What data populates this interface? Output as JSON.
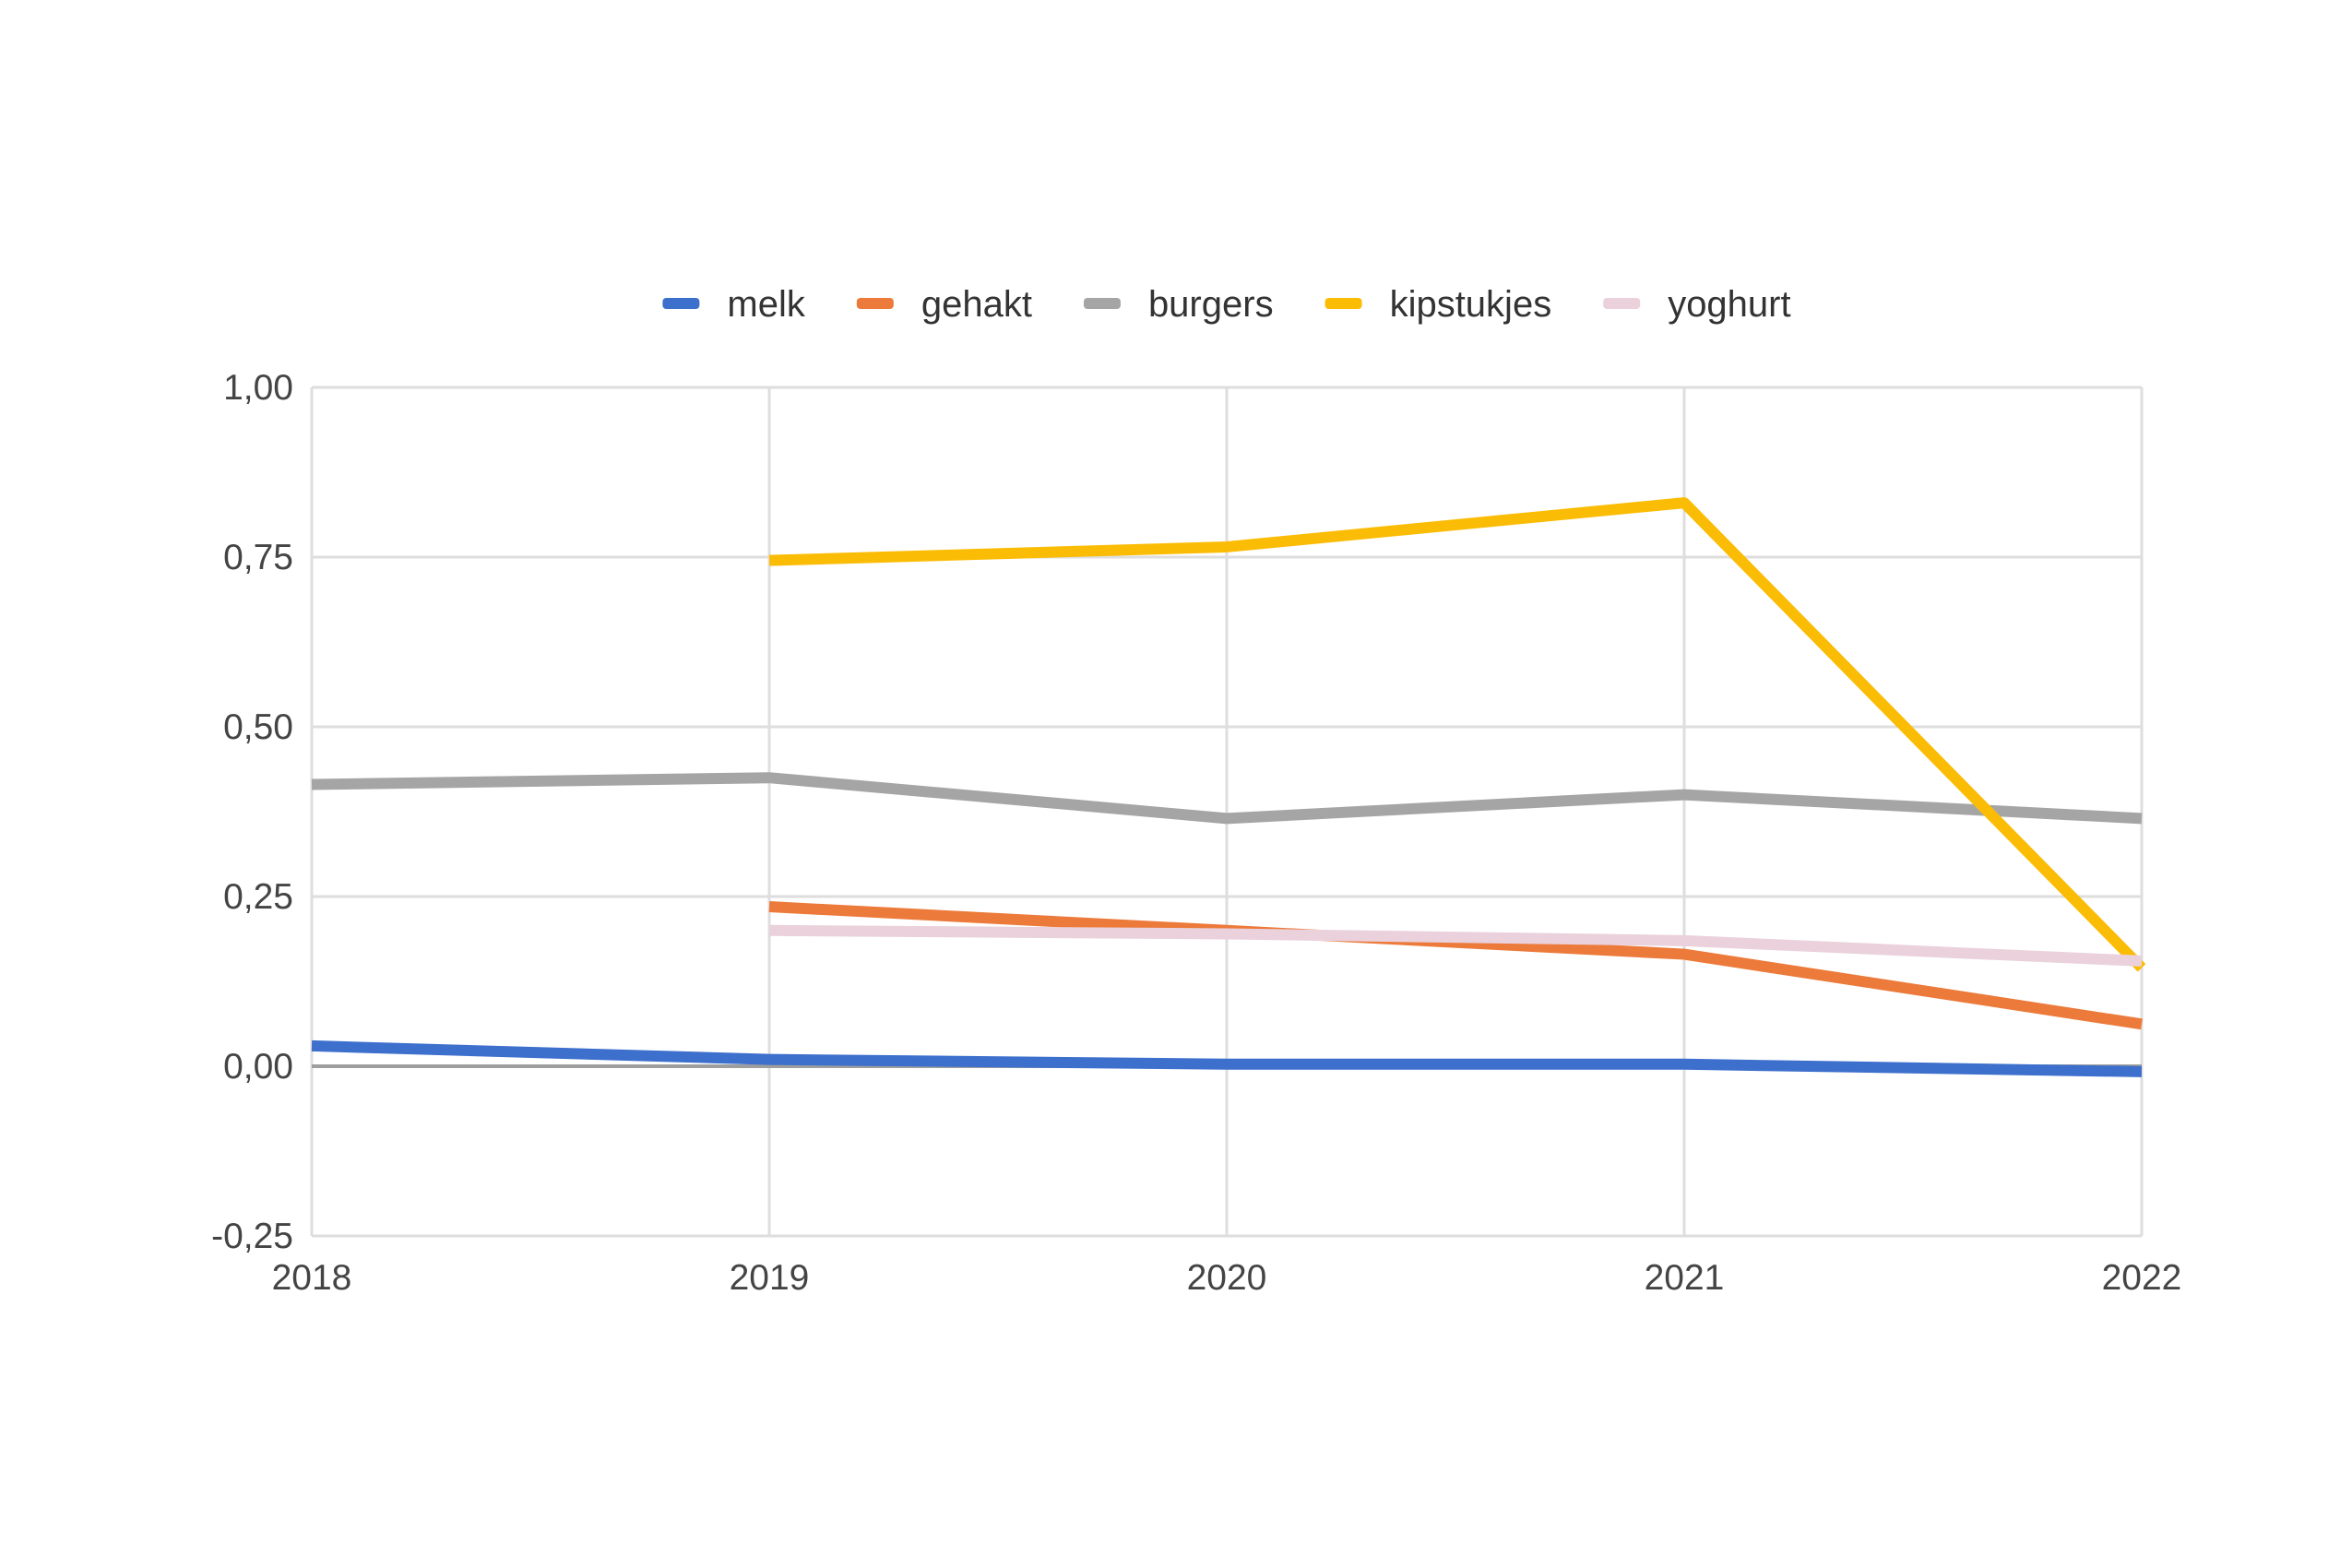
{
  "chart_data": {
    "type": "line",
    "title": "",
    "xlabel": "",
    "ylabel": "",
    "x": [
      "2018",
      "2019",
      "2020",
      "2021",
      "2022"
    ],
    "x_tick_labels": [
      "2018",
      "2019",
      "2020",
      "2021",
      "2022"
    ],
    "ylim": [
      -0.25,
      1.0
    ],
    "y_ticks": [
      -0.25,
      0.0,
      0.25,
      0.5,
      0.75,
      1.0
    ],
    "y_tick_labels": [
      "-0,25",
      "0,00",
      "0,25",
      "0,50",
      "0,75",
      "1,00"
    ],
    "grid": true,
    "legend_position": "top",
    "series": [
      {
        "name": "melk",
        "color": "#3d6fcc",
        "values": [
          0.03,
          0.01,
          0.003,
          0.003,
          -0.008
        ]
      },
      {
        "name": "gehakt",
        "color": "#ec7a3a",
        "values": [
          null,
          0.235,
          0.2,
          0.165,
          0.062
        ]
      },
      {
        "name": "burgers",
        "color": "#a5a5a5",
        "values": [
          0.415,
          0.425,
          0.365,
          0.4,
          0.365
        ]
      },
      {
        "name": "kipstukjes",
        "color": "#fbbc05",
        "values": [
          null,
          0.745,
          0.765,
          0.83,
          0.145
        ]
      },
      {
        "name": "yoghurt",
        "color": "#ead1dc",
        "values": [
          null,
          0.2,
          0.195,
          0.185,
          0.155
        ]
      }
    ]
  }
}
